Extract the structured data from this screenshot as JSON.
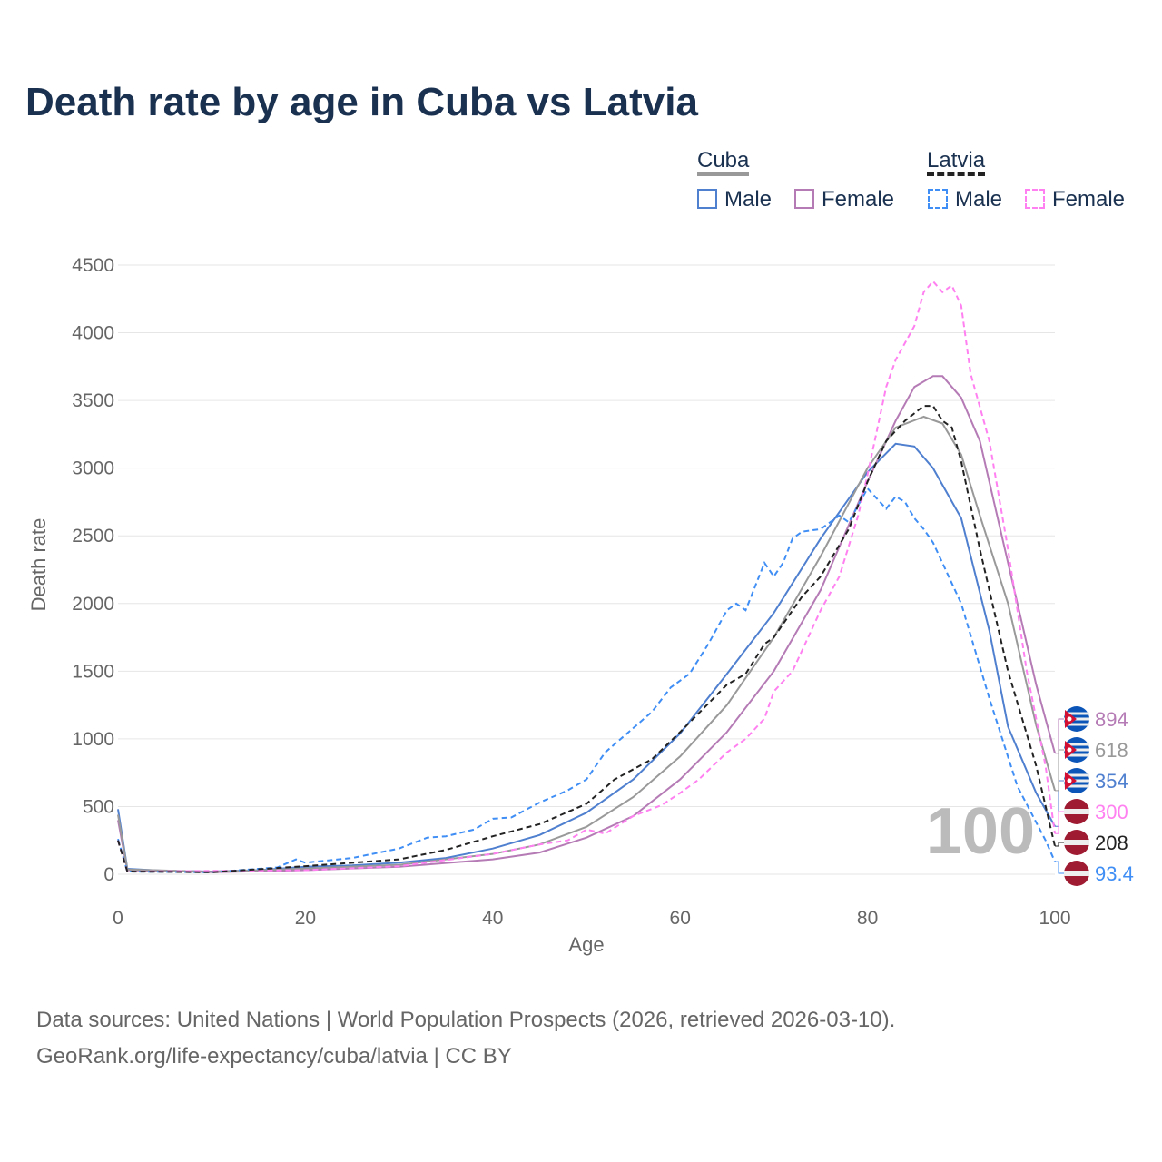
{
  "title": "Death rate by age in Cuba vs Latvia",
  "legend": {
    "cuba": "Cuba",
    "latvia": "Latvia",
    "male": "Male",
    "female": "Female"
  },
  "colors": {
    "cuba_male": "#4f7fcf",
    "cuba_female": "#b57bb5",
    "cuba_total": "#999999",
    "latvia_male": "#3f8ef5",
    "latvia_female": "#ff80f0",
    "latvia_total": "#222222"
  },
  "source_line1": "Data sources: United Nations | World Population Prospects (2026, retrieved 2026-03-10).",
  "source_line2": "GeoRank.org/life-expectancy/cuba/latvia | CC BY",
  "watermark": "100",
  "chart_data": {
    "type": "line",
    "xlabel": "Age",
    "ylabel": "Death rate",
    "xlim": [
      0,
      100
    ],
    "ylim": [
      0,
      4500
    ],
    "xticks": [
      0,
      20,
      40,
      60,
      80,
      100
    ],
    "yticks": [
      0,
      500,
      1000,
      1500,
      2000,
      2500,
      3000,
      3500,
      4000,
      4500
    ],
    "series": [
      {
        "name": "Cuba Male",
        "key": "cuba_male",
        "dash": false,
        "end_label": "354",
        "flag": "cuba",
        "points": [
          [
            0,
            480
          ],
          [
            1,
            40
          ],
          [
            5,
            25
          ],
          [
            10,
            20
          ],
          [
            15,
            30
          ],
          [
            20,
            55
          ],
          [
            25,
            65
          ],
          [
            30,
            85
          ],
          [
            35,
            120
          ],
          [
            40,
            190
          ],
          [
            45,
            290
          ],
          [
            50,
            455
          ],
          [
            55,
            700
          ],
          [
            60,
            1040
          ],
          [
            65,
            1480
          ],
          [
            70,
            1930
          ],
          [
            75,
            2480
          ],
          [
            80,
            2970
          ],
          [
            83,
            3180
          ],
          [
            85,
            3160
          ],
          [
            87,
            3000
          ],
          [
            90,
            2630
          ],
          [
            93,
            1800
          ],
          [
            95,
            1090
          ],
          [
            98,
            600
          ],
          [
            100,
            354
          ]
        ]
      },
      {
        "name": "Cuba Female",
        "key": "cuba_female",
        "dash": false,
        "end_label": "894",
        "flag": "cuba",
        "points": [
          [
            0,
            400
          ],
          [
            1,
            30
          ],
          [
            10,
            15
          ],
          [
            20,
            30
          ],
          [
            30,
            55
          ],
          [
            40,
            110
          ],
          [
            45,
            160
          ],
          [
            50,
            270
          ],
          [
            55,
            430
          ],
          [
            60,
            700
          ],
          [
            65,
            1050
          ],
          [
            70,
            1500
          ],
          [
            75,
            2100
          ],
          [
            80,
            2900
          ],
          [
            83,
            3350
          ],
          [
            85,
            3600
          ],
          [
            87,
            3680
          ],
          [
            88,
            3680
          ],
          [
            90,
            3520
          ],
          [
            92,
            3200
          ],
          [
            95,
            2300
          ],
          [
            98,
            1400
          ],
          [
            100,
            894
          ]
        ]
      },
      {
        "name": "Cuba Total",
        "key": "cuba_total",
        "dash": false,
        "end_label": "618",
        "flag": "cuba",
        "points": [
          [
            0,
            440
          ],
          [
            1,
            35
          ],
          [
            10,
            18
          ],
          [
            20,
            42
          ],
          [
            30,
            70
          ],
          [
            40,
            150
          ],
          [
            45,
            220
          ],
          [
            50,
            350
          ],
          [
            55,
            570
          ],
          [
            60,
            870
          ],
          [
            65,
            1250
          ],
          [
            70,
            1750
          ],
          [
            75,
            2350
          ],
          [
            80,
            3000
          ],
          [
            83,
            3300
          ],
          [
            86,
            3380
          ],
          [
            88,
            3330
          ],
          [
            90,
            3100
          ],
          [
            92,
            2650
          ],
          [
            95,
            2000
          ],
          [
            98,
            1100
          ],
          [
            100,
            618
          ]
        ]
      },
      {
        "name": "Latvia Male",
        "key": "latvia_male",
        "dash": true,
        "end_label": "93.4",
        "flag": "latvia",
        "points": [
          [
            0,
            260
          ],
          [
            1,
            20
          ],
          [
            10,
            15
          ],
          [
            17,
            50
          ],
          [
            19,
            110
          ],
          [
            20,
            85
          ],
          [
            25,
            120
          ],
          [
            30,
            190
          ],
          [
            33,
            270
          ],
          [
            35,
            280
          ],
          [
            38,
            330
          ],
          [
            40,
            410
          ],
          [
            42,
            420
          ],
          [
            45,
            530
          ],
          [
            48,
            620
          ],
          [
            50,
            700
          ],
          [
            52,
            900
          ],
          [
            55,
            1080
          ],
          [
            57,
            1200
          ],
          [
            59,
            1380
          ],
          [
            61,
            1480
          ],
          [
            63,
            1700
          ],
          [
            65,
            1950
          ],
          [
            66,
            2000
          ],
          [
            67,
            1950
          ],
          [
            69,
            2300
          ],
          [
            70,
            2200
          ],
          [
            71,
            2300
          ],
          [
            72,
            2480
          ],
          [
            73,
            2530
          ],
          [
            75,
            2550
          ],
          [
            77,
            2650
          ],
          [
            78,
            2600
          ],
          [
            80,
            2850
          ],
          [
            82,
            2700
          ],
          [
            83,
            2790
          ],
          [
            84,
            2750
          ],
          [
            85,
            2630
          ],
          [
            86,
            2550
          ],
          [
            87,
            2450
          ],
          [
            90,
            2000
          ],
          [
            93,
            1300
          ],
          [
            96,
            650
          ],
          [
            99,
            250
          ],
          [
            100,
            93.4
          ]
        ]
      },
      {
        "name": "Latvia Female",
        "key": "latvia_female",
        "dash": true,
        "end_label": "300",
        "flag": "latvia",
        "points": [
          [
            0,
            250
          ],
          [
            1,
            20
          ],
          [
            20,
            30
          ],
          [
            30,
            60
          ],
          [
            40,
            150
          ],
          [
            45,
            220
          ],
          [
            48,
            250
          ],
          [
            50,
            330
          ],
          [
            52,
            300
          ],
          [
            55,
            430
          ],
          [
            58,
            510
          ],
          [
            60,
            600
          ],
          [
            62,
            700
          ],
          [
            65,
            900
          ],
          [
            67,
            1000
          ],
          [
            69,
            1150
          ],
          [
            70,
            1350
          ],
          [
            72,
            1500
          ],
          [
            75,
            1950
          ],
          [
            77,
            2200
          ],
          [
            79,
            2650
          ],
          [
            80,
            2950
          ],
          [
            82,
            3600
          ],
          [
            83,
            3800
          ],
          [
            85,
            4050
          ],
          [
            86,
            4300
          ],
          [
            87,
            4380
          ],
          [
            88,
            4300
          ],
          [
            89,
            4350
          ],
          [
            90,
            4200
          ],
          [
            91,
            3700
          ],
          [
            93,
            3200
          ],
          [
            95,
            2400
          ],
          [
            97,
            1500
          ],
          [
            99,
            800
          ],
          [
            100,
            300
          ]
        ]
      },
      {
        "name": "Latvia Total",
        "key": "latvia_total",
        "dash": true,
        "end_label": "208",
        "flag": "latvia",
        "points": [
          [
            0,
            250
          ],
          [
            1,
            20
          ],
          [
            10,
            15
          ],
          [
            20,
            60
          ],
          [
            30,
            110
          ],
          [
            35,
            180
          ],
          [
            40,
            280
          ],
          [
            45,
            370
          ],
          [
            50,
            520
          ],
          [
            53,
            700
          ],
          [
            57,
            850
          ],
          [
            60,
            1050
          ],
          [
            65,
            1400
          ],
          [
            67,
            1480
          ],
          [
            69,
            1700
          ],
          [
            70,
            1750
          ],
          [
            73,
            2050
          ],
          [
            75,
            2200
          ],
          [
            78,
            2550
          ],
          [
            80,
            2900
          ],
          [
            82,
            3200
          ],
          [
            84,
            3350
          ],
          [
            86,
            3460
          ],
          [
            87,
            3460
          ],
          [
            88,
            3350
          ],
          [
            89,
            3300
          ],
          [
            90,
            3050
          ],
          [
            92,
            2400
          ],
          [
            95,
            1500
          ],
          [
            98,
            800
          ],
          [
            100,
            208
          ]
        ]
      }
    ]
  }
}
